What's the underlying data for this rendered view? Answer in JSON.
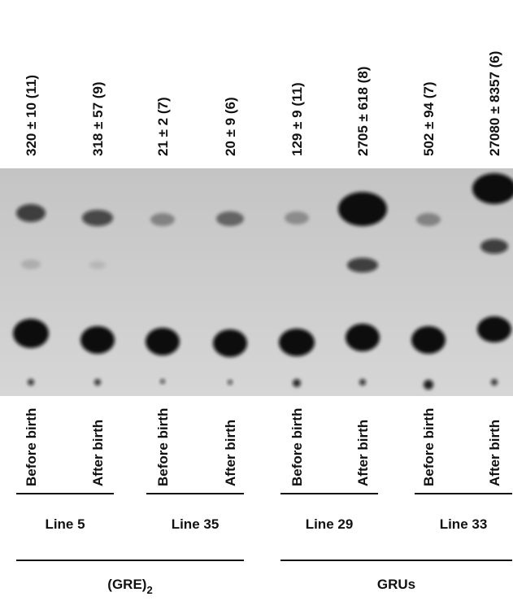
{
  "lanes": [
    {
      "value": "320 ± 10 (11)",
      "sample": "Before birth"
    },
    {
      "value": "318 ± 57 (9)",
      "sample": "After birth"
    },
    {
      "value": "21 ± 2 (7)",
      "sample": "Before birth"
    },
    {
      "value": "20 ± 9 (6)",
      "sample": "After birth"
    },
    {
      "value": "129 ± 9 (11)",
      "sample": "Before birth"
    },
    {
      "value": "2705 ± 618 (8)",
      "sample": "After birth"
    },
    {
      "value": "502 ± 94 (7)",
      "sample": "Before birth"
    },
    {
      "value": "27080 ± 8357 (6)",
      "sample": "After birth"
    }
  ],
  "lines": [
    "Line 5",
    "Line 35",
    "Line 29",
    "Line 33"
  ],
  "groups": [
    {
      "text": "(GRE)",
      "subscript": "2"
    },
    {
      "text": "GRUs"
    }
  ]
}
